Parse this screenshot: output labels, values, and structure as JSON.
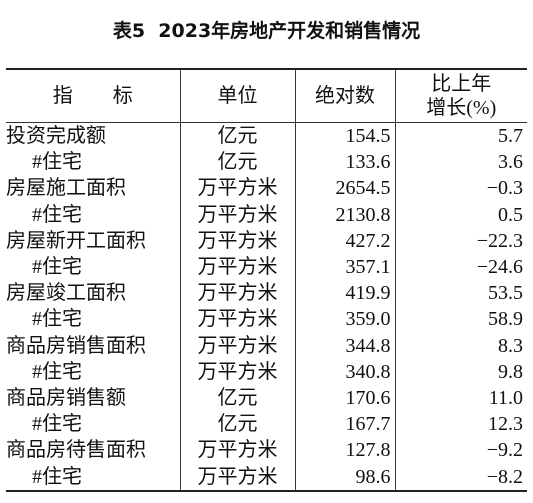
{
  "title": "表5  2023年房地产开发和销售情况",
  "table": {
    "header": [
      "指　　标",
      "单位",
      "绝对数",
      [
        "比上年",
        "增长(%)"
      ]
    ],
    "rows": [
      [
        "投资完成额",
        "亿元",
        "154.5",
        "5.7"
      ],
      [
        "#住宅",
        "亿元",
        "133.6",
        "3.6"
      ],
      [
        "房屋施工面积",
        "万平方米",
        "2654.5",
        "−0.3"
      ],
      [
        "#住宅",
        "万平方米",
        "2130.8",
        "0.5"
      ],
      [
        "房屋新开工面积",
        "万平方米",
        "427.2",
        "−22.3"
      ],
      [
        "#住宅",
        "万平方米",
        "357.1",
        "−24.6"
      ],
      [
        "房屋竣工面积",
        "万平方米",
        "419.9",
        "53.5"
      ],
      [
        "#住宅",
        "万平方米",
        "359.0",
        "58.9"
      ],
      [
        "商品房销售面积",
        "万平方米",
        "344.8",
        "8.3"
      ],
      [
        "#住宅",
        "万平方米",
        "340.8",
        "9.8"
      ],
      [
        "商品房销售额",
        "亿元",
        "170.6",
        "11.0"
      ],
      [
        "#住宅",
        "亿元",
        "167.7",
        "12.3"
      ],
      [
        "商品房待售面积",
        "万平方米",
        "127.8",
        "−9.2"
      ],
      [
        "#住宅",
        "万平方米",
        "98.6",
        "−8.2"
      ]
    ]
  }
}
